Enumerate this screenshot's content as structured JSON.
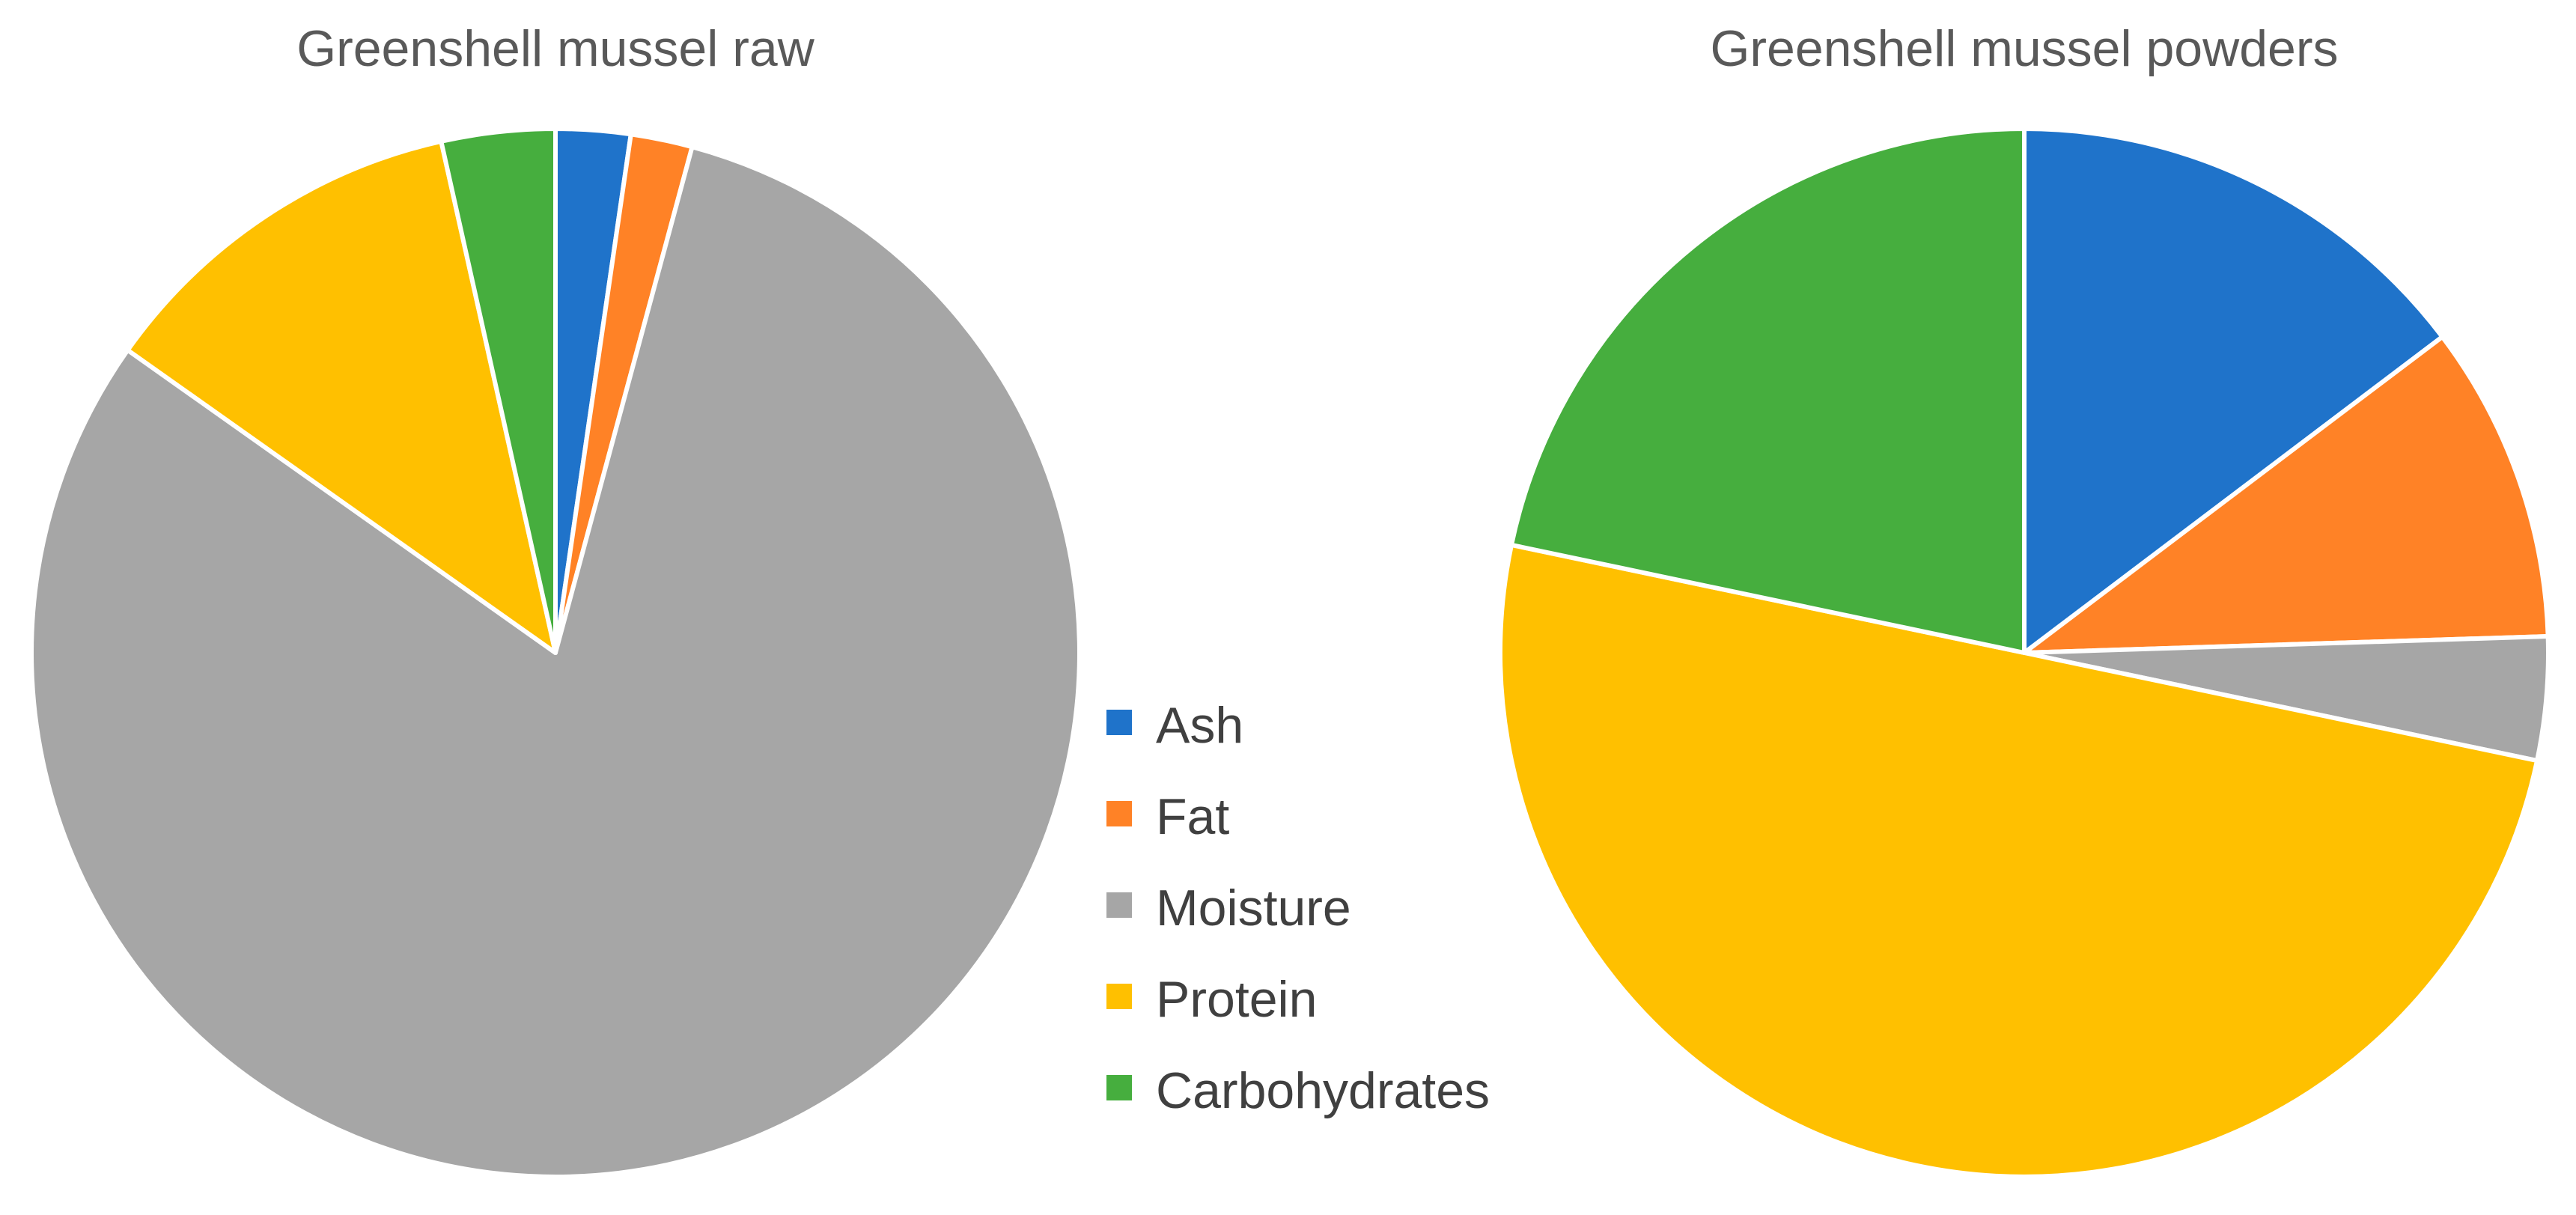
{
  "chart_data": [
    {
      "type": "pie",
      "title": "Greenshell mussel raw",
      "categories": [
        "Ash",
        "Fat",
        "Moisture",
        "Protein",
        "Carbohydrates"
      ],
      "values": [
        2.3,
        1.9,
        80.6,
        11.7,
        3.5
      ],
      "start_angle_deg": 0,
      "direction": "clockwise"
    },
    {
      "type": "pie",
      "title": "Greenshell mussel powders",
      "categories": [
        "Ash",
        "Fat",
        "Moisture",
        "Protein",
        "Carbohydrates"
      ],
      "values": [
        14.7,
        9.8,
        3.8,
        50.0,
        21.7
      ],
      "start_angle_deg": 0,
      "direction": "clockwise"
    }
  ],
  "legend": {
    "position": "center",
    "items": [
      {
        "label": "Ash",
        "color": "#1F73CA"
      },
      {
        "label": "Fat",
        "color": "#FF8226"
      },
      {
        "label": "Moisture",
        "color": "#A6A6A6"
      },
      {
        "label": "Protein",
        "color": "#FFC000"
      },
      {
        "label": "Carbohydrates",
        "color": "#46AE3E"
      }
    ]
  },
  "colors": {
    "Ash": "#1F73CA",
    "Fat": "#FF8226",
    "Moisture": "#A6A6A6",
    "Protein": "#FFC000",
    "Carbohydrates": "#46AE3E"
  }
}
